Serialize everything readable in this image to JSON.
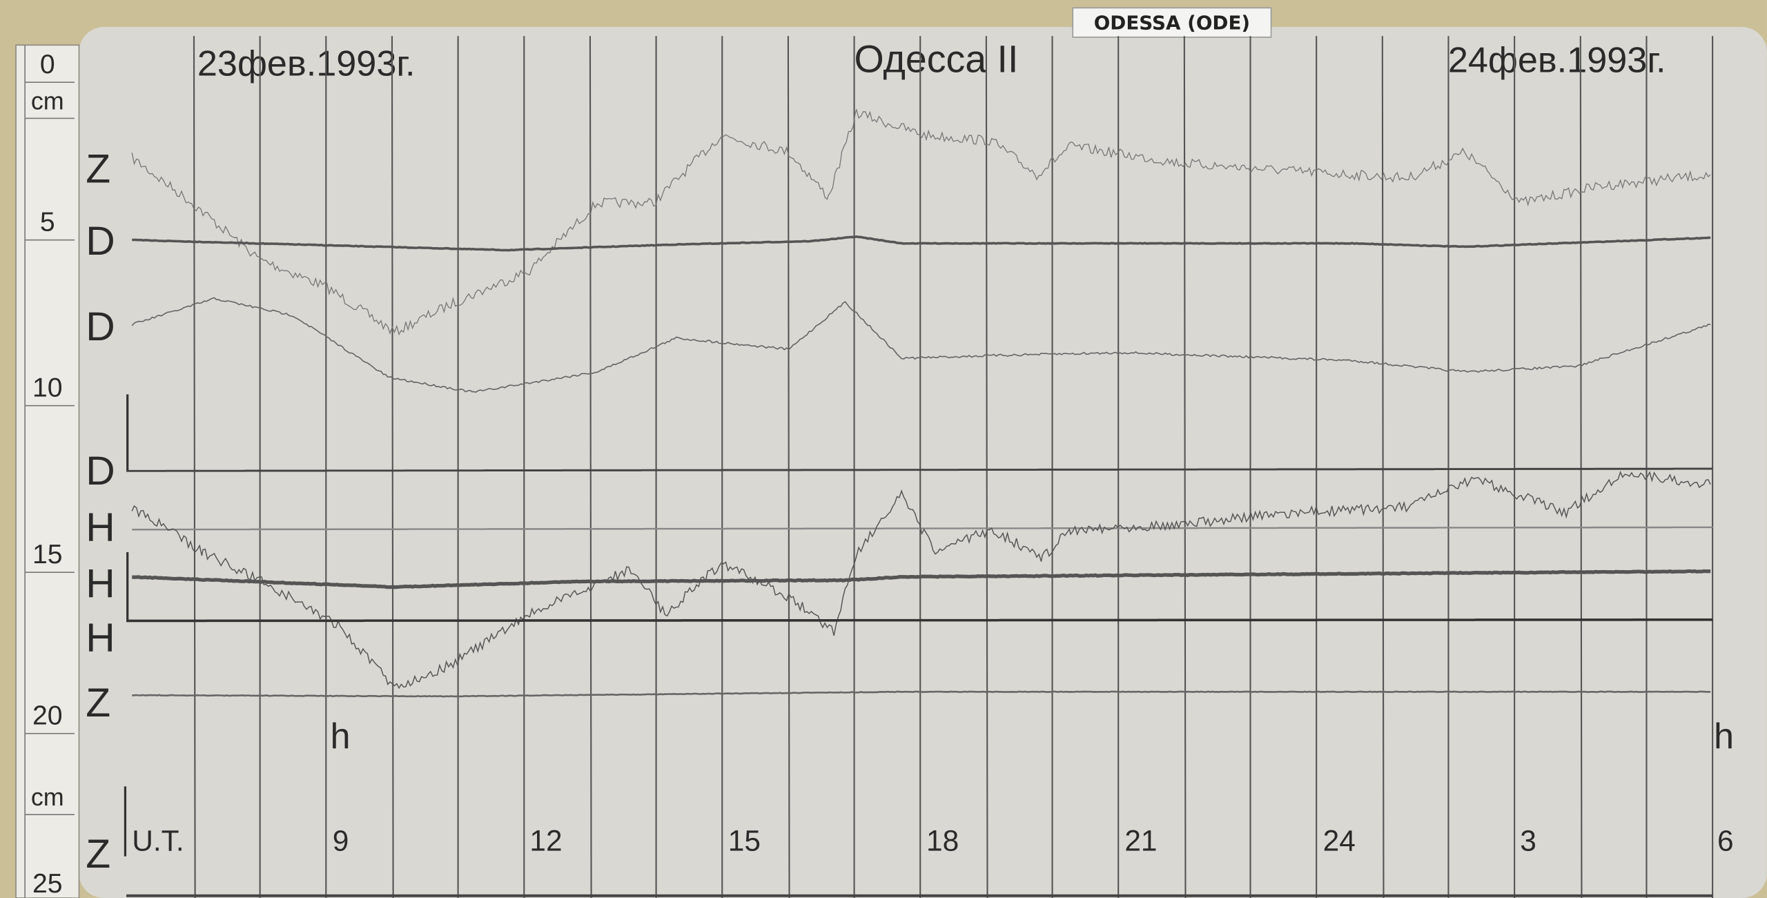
{
  "tag": "ODESSA (ODE)",
  "header": {
    "date_start": "23фев.1993г.",
    "station": "Одесса II",
    "date_end": "24фев.1993г."
  },
  "ruler": {
    "labels": [
      "0",
      "cm",
      "5",
      "10",
      "15",
      "20",
      "cm",
      "25"
    ]
  },
  "traces": {
    "labels": [
      "Z",
      "D",
      "D",
      "D",
      "H",
      "H",
      "H",
      "Z",
      "Z"
    ]
  },
  "time_axis": {
    "unit": "U.T.",
    "hour_marks": [
      "h",
      "h"
    ],
    "labels": [
      "9",
      "12",
      "15",
      "18",
      "21",
      "24",
      "3",
      "6"
    ]
  }
}
